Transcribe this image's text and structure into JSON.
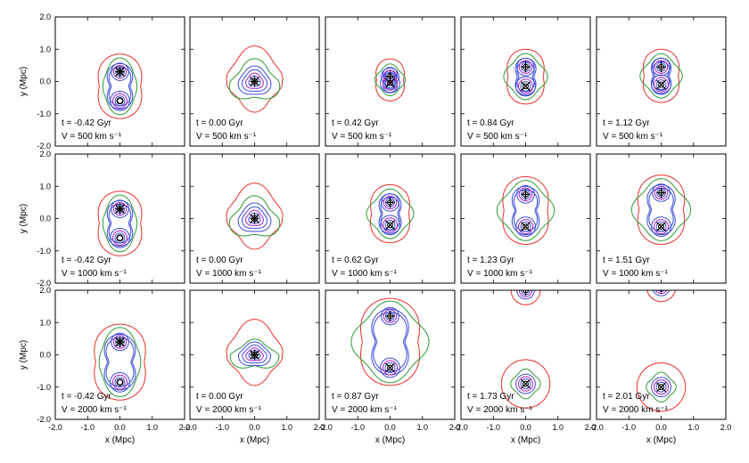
{
  "chart_data": {
    "type": "contour",
    "grid": "3x5",
    "xlabel": "x (Mpc)",
    "ylabel": "y (Mpc)",
    "xlim": [
      -2.0,
      2.0
    ],
    "ylim": [
      -2.0,
      2.0
    ],
    "x_ticks": [
      "-2.0",
      "-1.0",
      "0.0",
      "1.0",
      "2.0"
    ],
    "y_ticks": [
      "2.0",
      "1.0",
      "0.0",
      "-1.0",
      "-2.0"
    ],
    "contour_colors": {
      "outer": "#e8302a",
      "middle": "#2a9a34",
      "inner": "#3a4ad8",
      "core": "#a020c0",
      "marker": "#000000"
    },
    "panels": [
      [
        {
          "time_text": "t = -0.42 Gyr",
          "velocity_text": "V = 500 km s⁻¹",
          "clusters": [
            {
              "x": 0.0,
              "y": 0.3,
              "marker": "star"
            },
            {
              "x": 0.0,
              "y": -0.6,
              "marker": "circle"
            }
          ]
        },
        {
          "time_text": "t = 0.00 Gyr",
          "velocity_text": "V = 500 km s⁻¹",
          "clusters": [
            {
              "x": 0.0,
              "y": 0.0,
              "marker": "star"
            }
          ]
        },
        {
          "time_text": "t = 0.42 Gyr",
          "velocity_text": "V = 500 km s⁻¹",
          "clusters": [
            {
              "x": 0.0,
              "y": 0.15,
              "marker": "plus"
            },
            {
              "x": 0.0,
              "y": -0.05,
              "marker": "cross"
            }
          ]
        },
        {
          "time_text": "t = 0.84 Gyr",
          "velocity_text": "V = 500 km s⁻¹",
          "clusters": [
            {
              "x": 0.0,
              "y": 0.45,
              "marker": "plus"
            },
            {
              "x": 0.0,
              "y": -0.15,
              "marker": "cross"
            }
          ]
        },
        {
          "time_text": "t = 1.12 Gyr",
          "velocity_text": "V = 500 km s⁻¹",
          "clusters": [
            {
              "x": 0.0,
              "y": 0.45,
              "marker": "plus"
            },
            {
              "x": 0.0,
              "y": -0.1,
              "marker": "cross"
            }
          ]
        }
      ],
      [
        {
          "time_text": "t = -0.42 Gyr",
          "velocity_text": "V = 1000 km s⁻¹",
          "clusters": [
            {
              "x": 0.0,
              "y": 0.3,
              "marker": "star"
            },
            {
              "x": 0.0,
              "y": -0.6,
              "marker": "circle"
            }
          ]
        },
        {
          "time_text": "t = 0.00 Gyr",
          "velocity_text": "V = 1000 km s⁻¹",
          "clusters": [
            {
              "x": 0.0,
              "y": 0.0,
              "marker": "star"
            }
          ]
        },
        {
          "time_text": "t = 0.62 Gyr",
          "velocity_text": "V = 1000 km s⁻¹",
          "clusters": [
            {
              "x": 0.0,
              "y": 0.5,
              "marker": "plus"
            },
            {
              "x": 0.0,
              "y": -0.2,
              "marker": "cross"
            }
          ]
        },
        {
          "time_text": "t = 1.23 Gyr",
          "velocity_text": "V = 1000 km s⁻¹",
          "clusters": [
            {
              "x": 0.0,
              "y": 0.75,
              "marker": "plus"
            },
            {
              "x": 0.0,
              "y": -0.25,
              "marker": "cross"
            }
          ]
        },
        {
          "time_text": "t = 1.51 Gyr",
          "velocity_text": "V = 1000 km s⁻¹",
          "clusters": [
            {
              "x": 0.0,
              "y": 0.8,
              "marker": "plus"
            },
            {
              "x": 0.0,
              "y": -0.25,
              "marker": "cross"
            }
          ]
        }
      ],
      [
        {
          "time_text": "t = -0.42 Gyr",
          "velocity_text": "V = 2000 km s⁻¹",
          "clusters": [
            {
              "x": 0.0,
              "y": 0.4,
              "marker": "star"
            },
            {
              "x": 0.0,
              "y": -0.85,
              "marker": "circle"
            }
          ]
        },
        {
          "time_text": "t = 0.00 Gyr",
          "velocity_text": "V = 2000 km s⁻¹",
          "clusters": [
            {
              "x": 0.0,
              "y": 0.0,
              "marker": "star"
            }
          ]
        },
        {
          "time_text": "t = 0.87 Gyr",
          "velocity_text": "V = 2000 km s⁻¹",
          "clusters": [
            {
              "x": 0.0,
              "y": 1.2,
              "marker": "plus"
            },
            {
              "x": 0.0,
              "y": -0.4,
              "marker": "cross"
            }
          ]
        },
        {
          "time_text": "t = 1.73 Gyr",
          "velocity_text": "V = 2000 km s⁻¹",
          "clusters": [
            {
              "x": 0.0,
              "y": 2.0,
              "marker": "plus"
            },
            {
              "x": 0.0,
              "y": -0.9,
              "marker": "cross"
            }
          ]
        },
        {
          "time_text": "t = 2.01 Gyr",
          "velocity_text": "V = 2000 km s⁻¹",
          "clusters": [
            {
              "x": 0.0,
              "y": 2.1,
              "marker": "plus"
            },
            {
              "x": 0.0,
              "y": -1.0,
              "marker": "cross"
            }
          ]
        }
      ]
    ]
  }
}
